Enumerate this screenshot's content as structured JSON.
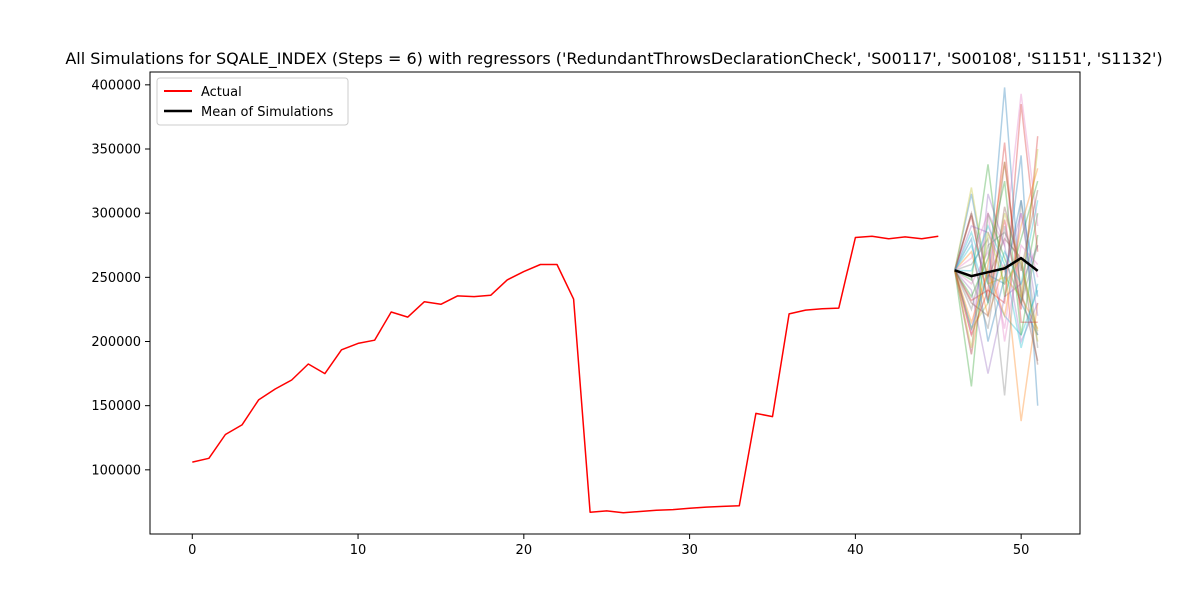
{
  "chart_data": {
    "type": "line",
    "title": "All Simulations for SQALE_INDEX (Steps = 6) with regressors ('RedundantThrowsDeclarationCheck', 'S00117', 'S00108', 'S1151', 'S1132')",
    "xlabel": "",
    "ylabel": "",
    "xlim": [
      -2.55,
      53.55
    ],
    "ylim": [
      50000,
      410000
    ],
    "xticks": [
      0,
      10,
      20,
      30,
      40,
      50
    ],
    "yticks": [
      100000,
      150000,
      200000,
      250000,
      300000,
      350000,
      400000
    ],
    "legend": {
      "placement": "upper-left",
      "entries": [
        "Actual",
        "Mean of Simulations"
      ]
    },
    "series": [
      {
        "name": "Actual",
        "color": "#ff0000",
        "x": [
          0,
          1,
          2,
          3,
          4,
          5,
          6,
          7,
          8,
          9,
          10,
          11,
          12,
          13,
          14,
          15,
          16,
          17,
          18,
          19,
          20,
          21,
          22,
          23,
          24,
          25,
          26,
          27,
          28,
          29,
          30,
          31,
          32,
          33,
          34,
          35,
          36,
          37,
          38,
          39,
          40,
          41,
          42,
          43,
          44,
          45
        ],
        "values": [
          106000,
          109000,
          127500,
          135000,
          154500,
          163000,
          170000,
          182500,
          175000,
          193500,
          198500,
          201000,
          223000,
          219000,
          231000,
          229000,
          235500,
          235000,
          236000,
          248000,
          254500,
          260000,
          260000,
          233000,
          67000,
          68000,
          66500,
          67500,
          68500,
          69000,
          70000,
          71000,
          71500,
          72000,
          144000,
          141500,
          221500,
          224500,
          225500,
          226000,
          281000,
          282000,
          280000,
          281500,
          280000,
          282000
        ]
      },
      {
        "name": "Mean of Simulations",
        "color": "#000000",
        "x": [
          46,
          47,
          48,
          49,
          50,
          51
        ],
        "values": [
          255500,
          251000,
          254000,
          257000,
          265000,
          255000
        ]
      }
    ],
    "simulations": {
      "x": [
        46,
        47,
        48,
        49,
        50,
        51
      ],
      "colors": [
        "#1f77b4",
        "#ff7f0e",
        "#2ca02c",
        "#d62728",
        "#9467bd",
        "#8c564b",
        "#e377c2",
        "#7f7f7f",
        "#bcbd22",
        "#17becf"
      ],
      "runs": [
        [
          255500,
          315000,
          245000,
          398000,
          230000,
          205000
        ],
        [
          255500,
          190000,
          260000,
          340000,
          235000,
          210000
        ],
        [
          255500,
          165000,
          300000,
          265000,
          230000,
          300000
        ],
        [
          255500,
          298000,
          232000,
          295000,
          225000,
          360000
        ],
        [
          255500,
          240000,
          175000,
          235000,
          245000,
          275000
        ],
        [
          255500,
          300000,
          250000,
          280000,
          265000,
          182000
        ],
        [
          255500,
          205000,
          300000,
          275000,
          393000,
          290000
        ],
        [
          255500,
          260000,
          280000,
          158000,
          310000,
          195000
        ],
        [
          255500,
          210000,
          230000,
          300000,
          260000,
          208000
        ],
        [
          255500,
          285000,
          245000,
          220000,
          205000,
          240000
        ],
        [
          255500,
          210000,
          252000,
          245000,
          345000,
          150000
        ],
        [
          255500,
          270000,
          220000,
          260000,
          138000,
          230000
        ],
        [
          255500,
          248000,
          338000,
          235000,
          280000,
          325000
        ],
        [
          255500,
          232000,
          240000,
          355000,
          215000,
          215000
        ],
        [
          255500,
          190000,
          315000,
          275000,
          200000,
          230000
        ],
        [
          255500,
          300000,
          230000,
          340000,
          240000,
          185000
        ],
        [
          255500,
          245000,
          270000,
          210000,
          300000,
          250000
        ],
        [
          255500,
          225000,
          275000,
          285000,
          260000,
          205000
        ],
        [
          255500,
          320000,
          245000,
          250000,
          235000,
          350000
        ],
        [
          255500,
          255000,
          290000,
          260000,
          195000,
          245000
        ],
        [
          255500,
          280000,
          200000,
          250000,
          310000,
          235000
        ],
        [
          255500,
          215000,
          255000,
          220000,
          290000,
          335000
        ],
        [
          255500,
          235000,
          265000,
          325000,
          205000,
          283000
        ],
        [
          255500,
          205000,
          240000,
          230000,
          385000,
          270000
        ],
        [
          255500,
          290000,
          285000,
          255000,
          300000,
          220000
        ],
        [
          255500,
          230000,
          220000,
          305000,
          255000,
          318000
        ],
        [
          255500,
          265000,
          300000,
          200000,
          275000,
          260000
        ],
        [
          255500,
          250000,
          210000,
          290000,
          230000,
          275000
        ],
        [
          255500,
          195000,
          285000,
          245000,
          265000,
          200000
        ],
        [
          255500,
          275000,
          230000,
          270000,
          245000,
          310000
        ]
      ]
    }
  }
}
